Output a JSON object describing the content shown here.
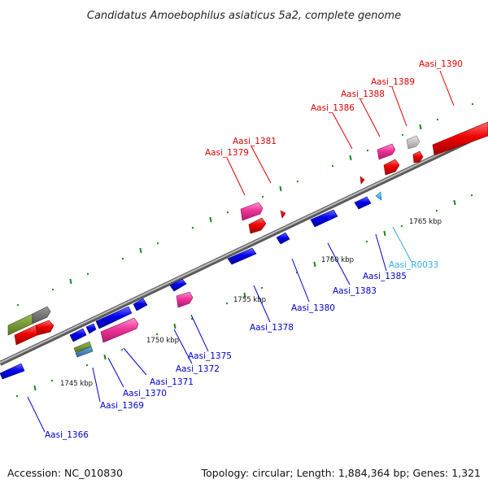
{
  "title": "Candidatus Amoebophilus asiaticus 5a2, complete genome",
  "footer": {
    "accession": "Accession: NC_010830",
    "topology": "Topology: circular; Length: 1,884,364 bp; Genes: 1,321"
  },
  "colors": {
    "label_red": "#e00000",
    "label_blue": "#0000cc",
    "label_cyan": "#33aaee",
    "forward_gene": "#ee0000",
    "forward_pink": "#ee3399",
    "reverse_gene": "#0000ee",
    "tick_green": "#1a8a1a",
    "backbone": "#888888"
  },
  "tick_labels": [
    "1745 kbp",
    "1750 kbp",
    "1755 kbp",
    "1760 kbp",
    "1765 kbp"
  ],
  "gene_labels": [
    {
      "text": "Aasi_1390",
      "color": "red"
    },
    {
      "text": "Aasi_1389",
      "color": "red"
    },
    {
      "text": "Aasi_1388",
      "color": "red"
    },
    {
      "text": "Aasi_1386",
      "color": "red"
    },
    {
      "text": "Aasi_1381",
      "color": "red"
    },
    {
      "text": "Aasi_1379",
      "color": "red"
    },
    {
      "text": "Aasi_R0033",
      "color": "cyan"
    },
    {
      "text": "Aasi_1385",
      "color": "blue"
    },
    {
      "text": "Aasi_1383",
      "color": "blue"
    },
    {
      "text": "Aasi_1380",
      "color": "blue"
    },
    {
      "text": "Aasi_1378",
      "color": "blue"
    },
    {
      "text": "Aasi_1375",
      "color": "blue"
    },
    {
      "text": "Aasi_1372",
      "color": "blue"
    },
    {
      "text": "Aasi_1371",
      "color": "blue"
    },
    {
      "text": "Aasi_1370",
      "color": "blue"
    },
    {
      "text": "Aasi_1369",
      "color": "blue"
    },
    {
      "text": "Aasi_1366",
      "color": "blue"
    }
  ]
}
